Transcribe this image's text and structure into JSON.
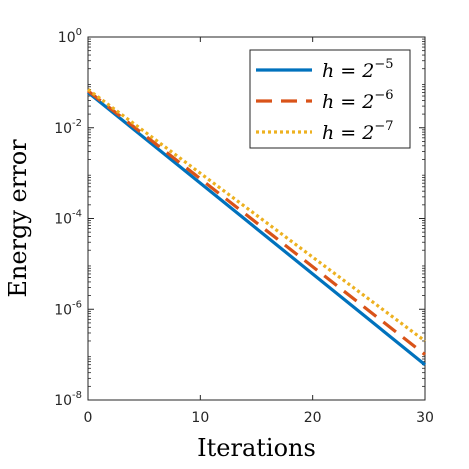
{
  "chart_data": {
    "type": "line",
    "xlabel": "Iterations",
    "ylabel": "Energy error",
    "xlim": [
      0,
      30
    ],
    "ylim": [
      1e-08,
      1
    ],
    "yscale": "log",
    "xticks": [
      0,
      10,
      20,
      30
    ],
    "yticks": [
      {
        "value": 1,
        "base": "10",
        "exp": "0"
      },
      {
        "value": 0.01,
        "base": "10",
        "exp": "-2"
      },
      {
        "value": 0.0001,
        "base": "10",
        "exp": "-4"
      },
      {
        "value": 1e-06,
        "base": "10",
        "exp": "-6"
      },
      {
        "value": 1e-08,
        "base": "10",
        "exp": "-8"
      }
    ],
    "grid": false,
    "legend_position": "top-right",
    "series": [
      {
        "name": "h = 2^-5",
        "name_main": "h = 2",
        "name_exp": "−5",
        "color": "#0072BD",
        "style": "solid",
        "x": [
          0,
          30
        ],
        "y": [
          0.06,
          6e-08
        ]
      },
      {
        "name": "h = 2^-6",
        "name_main": "h = 2",
        "name_exp": "−6",
        "color": "#D95319",
        "style": "dashed",
        "x": [
          0,
          30
        ],
        "y": [
          0.065,
          1e-07
        ]
      },
      {
        "name": "h = 2^-7",
        "name_main": "h = 2",
        "name_exp": "−7",
        "color": "#EDB120",
        "style": "dotted",
        "x": [
          0,
          30
        ],
        "y": [
          0.07,
          2e-07
        ]
      }
    ]
  }
}
